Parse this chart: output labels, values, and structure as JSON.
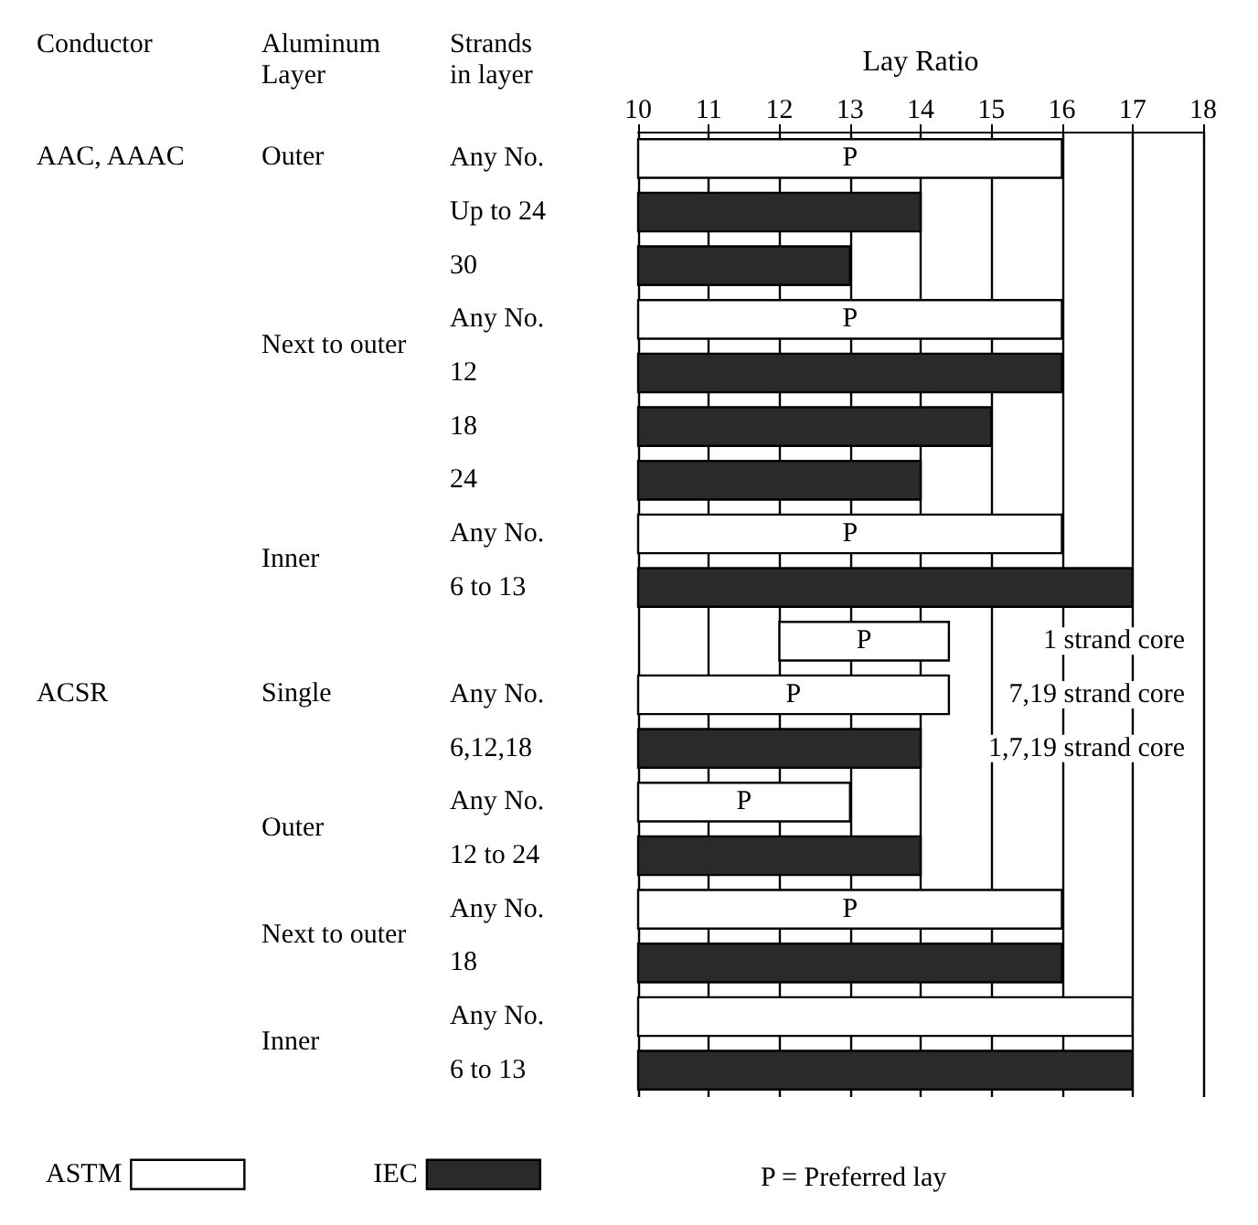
{
  "chart_data": {
    "type": "bar",
    "orientation": "horizontal",
    "xlabel": "Lay Ratio",
    "ylabel": "Strands in layer",
    "categories": [
      "Any No.",
      "Up to 24",
      "30",
      "Any No.",
      "12",
      "18",
      "24",
      "Any No.",
      "6 to 13",
      null,
      "Any No.",
      "6,12,18",
      "Any No.",
      "12 to 24",
      "Any No.",
      "18",
      "Any No.",
      "6 to 13"
    ],
    "y2_categories": [
      null,
      null,
      null,
      null,
      null,
      null,
      null,
      null,
      null,
      "1 strand core",
      "7,19 strand core",
      "1,7,19 strand core",
      null,
      null,
      null,
      null,
      null,
      null
    ],
    "xlim": [
      10,
      18
    ],
    "xticks": [
      10,
      11,
      12,
      13,
      14,
      15,
      16,
      17,
      18
    ],
    "grid": "x",
    "legend": "bottom",
    "series": [
      {
        "name": "ASTM",
        "type": "bar",
        "color": "#ffffff",
        "base": [
          10,
          null,
          null,
          10,
          null,
          null,
          null,
          10,
          null,
          12,
          10,
          null,
          10,
          null,
          10,
          null,
          10,
          null
        ],
        "values": [
          6,
          null,
          null,
          6,
          null,
          null,
          null,
          6,
          null,
          2.4,
          4.4,
          null,
          3,
          null,
          6,
          null,
          7,
          null
        ],
        "value_labels": [
          "P",
          null,
          null,
          "P",
          null,
          null,
          null,
          "P",
          null,
          "P",
          "P",
          null,
          "P",
          null,
          "P",
          null,
          null,
          null
        ]
      },
      {
        "name": "IEC",
        "type": "bar",
        "color": "#2a2a2a",
        "base": [
          null,
          10,
          10,
          null,
          10,
          10,
          10,
          null,
          10,
          null,
          null,
          10,
          null,
          10,
          null,
          10,
          null,
          10
        ],
        "values": [
          null,
          4,
          3,
          null,
          6,
          5,
          4,
          null,
          7,
          null,
          null,
          4,
          null,
          4,
          null,
          6,
          null,
          7
        ]
      }
    ],
    "annotations": [
      "Conductor",
      "Aluminum Layer",
      "AAC, AAAC",
      "Outer",
      "Next to outer",
      "Inner",
      "ACSR",
      "Single",
      "Outer",
      "Next to outer",
      "Inner",
      "P = Preferred lay"
    ]
  }
}
